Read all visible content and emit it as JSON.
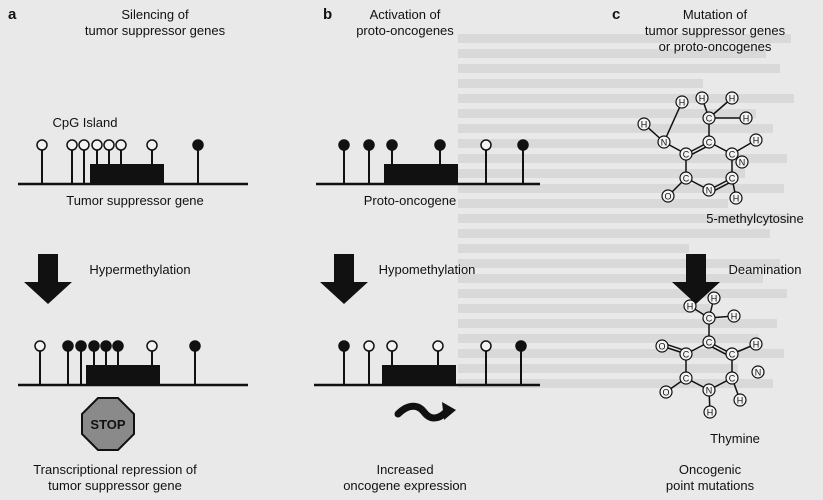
{
  "panels": {
    "a": {
      "letter": "a",
      "heading_line1": "Silencing of",
      "heading_line2": "tumor suppressor genes",
      "island_label": "CpG Island",
      "gene_label": "Tumor suppressor gene",
      "process_label": "Hypermethylation",
      "stop_label": "STOP",
      "outcome_line1": "Transcriptional repression of",
      "outcome_line2": "tumor suppressor gene"
    },
    "b": {
      "letter": "b",
      "heading_line1": "Activation of",
      "heading_line2": "proto-oncogenes",
      "gene_label": "Proto-oncogene",
      "process_label": "Hypomethylation",
      "outcome_line1": "Increased",
      "outcome_line2": "oncogene expression"
    },
    "c": {
      "letter": "c",
      "heading_line1": "Mutation of",
      "heading_line2": "tumor suppressor genes",
      "heading_line3": "or proto-oncogenes",
      "molecule1_label": "5-methylcytosine",
      "process_label": "Deamination",
      "molecule2_label": "Thymine",
      "outcome_line1": "Oncogenic",
      "outcome_line2": "point mutations",
      "atoms": {
        "H": "H",
        "C": "C",
        "N": "N",
        "O": "O"
      }
    }
  },
  "colors": {
    "ink": "#111111",
    "background": "#e9e9e9",
    "stop_sign": "#8a8a8a"
  }
}
